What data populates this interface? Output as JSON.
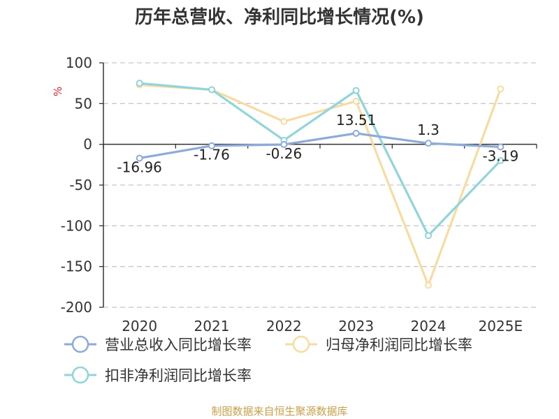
{
  "colors": {
    "revenue": "#8eaad8",
    "net_profit": "#f7dca2",
    "deducted_profit": "#8fd5d9",
    "grid": "#c8c8c8",
    "axis": "#333333",
    "unit": "#d9262a",
    "source": "#c9a04a"
  },
  "chart_data": {
    "type": "line",
    "title": "历年总营收、净利同比增长情况(%)",
    "ylabel": "%",
    "xlabel": "",
    "ylim": [
      -200,
      100
    ],
    "yticks": [
      100,
      50,
      0,
      -50,
      -100,
      -150,
      -200
    ],
    "grid": true,
    "legend_position": "bottom",
    "categories": [
      "2020",
      "2021",
      "2022",
      "2023",
      "2024",
      "2025E"
    ],
    "series": [
      {
        "key": "revenue",
        "name": "营业总收入同比增长率",
        "values": [
          -16.96,
          -1.76,
          -0.26,
          13.51,
          1.3,
          -3.19
        ],
        "labels": [
          "-16.96",
          "-1.76",
          "-0.26",
          "13.51",
          "1.3",
          "-3.19"
        ]
      },
      {
        "key": "net_profit",
        "name": "归母净利润同比增长率",
        "values": [
          73,
          67,
          28,
          53,
          -173,
          68
        ]
      },
      {
        "key": "deducted_profit",
        "name": "扣非净利润同比增长率",
        "values": [
          75,
          67,
          5,
          66,
          -112,
          -20
        ]
      }
    ]
  },
  "source_text": "制图数据来自恒生聚源数据库"
}
